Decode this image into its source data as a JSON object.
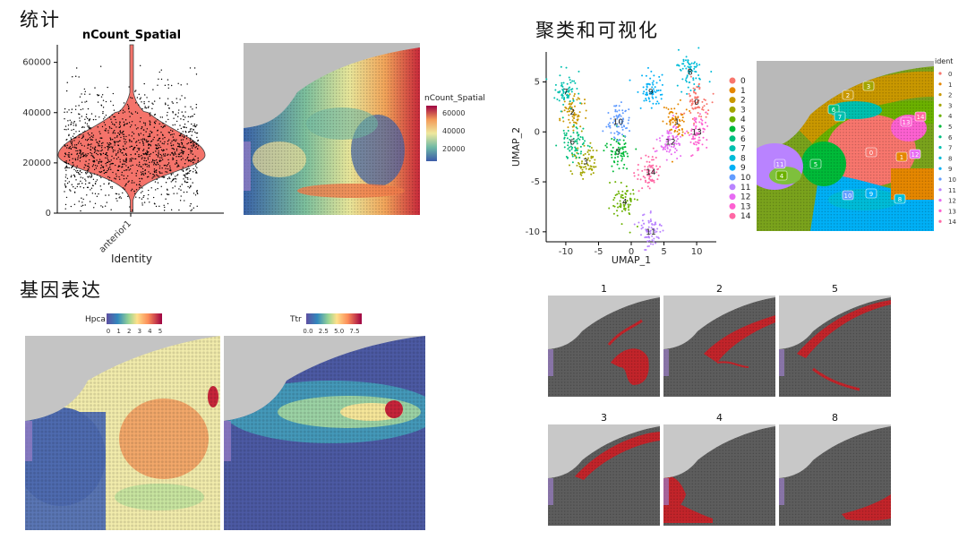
{
  "sections": {
    "stats": "统计",
    "cluster": "聚类和可视化",
    "gene": "基因表达"
  },
  "violin": {
    "title": "nCount_Spatial",
    "xlabel": "Identity",
    "category": "anterior1",
    "yticks": [
      "0",
      "20000",
      "40000",
      "60000"
    ],
    "fill": "#f4736a"
  },
  "ncount_map": {
    "legend_title": "nCount_Spatial",
    "legend_ticks": [
      "60000",
      "40000",
      "20000"
    ]
  },
  "umap": {
    "xlabel": "UMAP_1",
    "ylabel": "UMAP_2",
    "xticks": [
      "-10",
      "-5",
      "0",
      "5",
      "10"
    ],
    "yticks": [
      "5",
      "0",
      "-5",
      "-10"
    ],
    "legend": [
      "0",
      "1",
      "2",
      "3",
      "4",
      "5",
      "6",
      "7",
      "8",
      "9",
      "10",
      "11",
      "12",
      "13",
      "14"
    ],
    "colors": [
      "#f8766d",
      "#e58700",
      "#c99800",
      "#a3a500",
      "#6bb100",
      "#00ba38",
      "#00bf7d",
      "#00c0af",
      "#00bcd8",
      "#00b0f6",
      "#619cff",
      "#b983ff",
      "#e76bf3",
      "#fd61d1",
      "#ff67a4"
    ]
  },
  "ident_map": {
    "legend_title": "ident",
    "legend": [
      "0",
      "1",
      "2",
      "3",
      "4",
      "5",
      "6",
      "7",
      "8",
      "9",
      "10",
      "11",
      "12",
      "13",
      "14"
    ]
  },
  "hpca": {
    "label": "Hpca",
    "ticks": [
      "0",
      "1",
      "2",
      "3",
      "4",
      "5"
    ]
  },
  "ttr": {
    "label": "Ttr",
    "ticks": [
      "0.0",
      "2.5",
      "5.0",
      "7.5"
    ]
  },
  "cluster_panels": [
    "1",
    "2",
    "5",
    "3",
    "4",
    "8"
  ],
  "chart_data": [
    {
      "type": "violin",
      "title": "nCount_Spatial",
      "xlabel": "Identity",
      "categories": [
        "anterior1"
      ],
      "ylim": [
        0,
        67000
      ],
      "summary": {
        "median": 24000,
        "mode": 23000,
        "max": 67000,
        "min": 500
      }
    },
    {
      "type": "scatter",
      "xlabel": "UMAP_1",
      "ylabel": "UMAP_2",
      "xlim": [
        -13,
        13
      ],
      "ylim": [
        -11,
        8
      ],
      "series": [
        {
          "name": "0",
          "center": [
            10,
            3
          ]
        },
        {
          "name": "1",
          "center": [
            7,
            1
          ]
        },
        {
          "name": "2",
          "center": [
            -9,
            2
          ]
        },
        {
          "name": "3",
          "center": [
            -7,
            -3
          ]
        },
        {
          "name": "4",
          "center": [
            -1,
            -7
          ]
        },
        {
          "name": "5",
          "center": [
            -2,
            -2
          ]
        },
        {
          "name": "6",
          "center": [
            -9,
            -1
          ]
        },
        {
          "name": "7",
          "center": [
            -10,
            4
          ]
        },
        {
          "name": "8",
          "center": [
            9,
            6
          ]
        },
        {
          "name": "9",
          "center": [
            3,
            4
          ]
        },
        {
          "name": "10",
          "center": [
            -2,
            1
          ]
        },
        {
          "name": "11",
          "center": [
            3,
            -10
          ]
        },
        {
          "name": "12",
          "center": [
            6,
            -1
          ]
        },
        {
          "name": "13",
          "center": [
            10,
            0
          ]
        },
        {
          "name": "14",
          "center": [
            3,
            -4
          ]
        }
      ]
    }
  ]
}
